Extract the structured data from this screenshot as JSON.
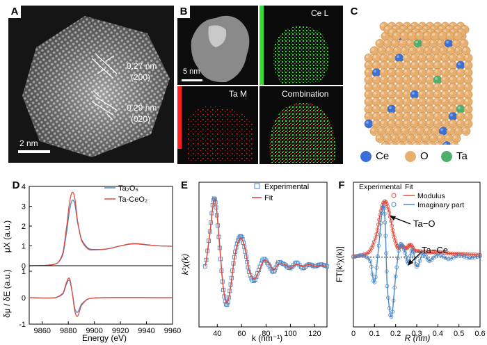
{
  "panels": {
    "A": {
      "label": "A",
      "d1_value": "0.27 nm",
      "d1_plane": "(200)",
      "d2_value": "0.29 nm",
      "d2_plane": "(020)",
      "scale": "2 nm"
    },
    "B": {
      "label": "B",
      "scale": "5 nm",
      "map_ce": "Ce L",
      "map_ta": "Ta M",
      "map_comb": "Combination",
      "colors": {
        "ce": "#33dd33",
        "ta": "#ff2020"
      }
    },
    "C": {
      "label": "C",
      "legend": [
        {
          "name": "Ce",
          "color": "#3a6fd8"
        },
        {
          "name": "O",
          "color": "#e8b070"
        },
        {
          "name": "Ta",
          "color": "#4fb06e"
        }
      ]
    },
    "D": {
      "label": "D",
      "top_ylabel": "μX (a.u.)",
      "bottom_ylabel": "δμ / δE (a.u.)",
      "xlabel": "Energy (eV)",
      "legend": [
        "Ta₂O₅",
        "Ta-CeO₂"
      ],
      "colors": {
        "ta2o5": "#4a86c8",
        "taceo2": "#e04a3a"
      }
    },
    "E": {
      "label": "E",
      "xlabel": "k (nm⁻¹)",
      "ylabel": "k¹χ(k)",
      "legend": [
        "Experimental",
        "Fit"
      ]
    },
    "F": {
      "label": "F",
      "xlabel": "R (nm)",
      "ylabel": "FT[k¹χ(k)]",
      "legend_header": [
        "Experimental",
        "Fit"
      ],
      "legend": [
        "Modulus",
        "Imaginary part"
      ],
      "annotation1": "Ta−O",
      "annotation2": "Ta−Ce"
    }
  },
  "chart_data": [
    {
      "type": "line",
      "title": "",
      "xlabel": "Energy (eV)",
      "ylabel": "μX (a.u.)",
      "xlim": [
        9850,
        9960
      ],
      "ylim": [
        0,
        4
      ],
      "xticks": [
        9860,
        9880,
        9900,
        9920,
        9940,
        9960
      ],
      "yticks": [
        0,
        1,
        2,
        3,
        4
      ],
      "series": [
        {
          "name": "Ta₂O₅",
          "color": "#4a86c8",
          "x": [
            9850,
            9865,
            9872,
            9876,
            9879,
            9881,
            9883,
            9885,
            9887,
            9890,
            9895,
            9900,
            9910,
            9920,
            9930,
            9940,
            9950,
            9960
          ],
          "y": [
            0.0,
            0.03,
            0.15,
            0.6,
            1.8,
            2.8,
            3.3,
            3.1,
            2.2,
            1.35,
            0.9,
            0.82,
            0.85,
            1.0,
            1.1,
            1.05,
            1.0,
            0.98
          ]
        },
        {
          "name": "Ta-CeO₂",
          "color": "#e04a3a",
          "x": [
            9850,
            9865,
            9872,
            9876,
            9879,
            9881,
            9883,
            9885,
            9887,
            9890,
            9895,
            9900,
            9910,
            9920,
            9930,
            9940,
            9950,
            9960
          ],
          "y": [
            0.0,
            0.03,
            0.15,
            0.7,
            2.1,
            3.2,
            3.7,
            3.4,
            2.3,
            1.3,
            0.85,
            0.8,
            0.85,
            1.0,
            1.12,
            1.06,
            1.0,
            0.98
          ]
        }
      ]
    },
    {
      "type": "line",
      "title": "",
      "xlabel": "Energy (eV)",
      "ylabel": "δμ / δE (a.u.)",
      "xlim": [
        9850,
        9960
      ],
      "ylim": [
        -1,
        1
      ],
      "yticks": [
        -1,
        0,
        1
      ],
      "series": [
        {
          "name": "Ta₂O₅",
          "color": "#4a86c8",
          "x": [
            9850,
            9870,
            9876,
            9879,
            9881,
            9883,
            9885,
            9887,
            9890,
            9895,
            9905,
            9960
          ],
          "y": [
            0,
            0,
            0.15,
            0.55,
            0.65,
            0.2,
            -0.4,
            -0.55,
            -0.25,
            -0.05,
            0,
            0
          ]
        },
        {
          "name": "Ta-CeO₂",
          "color": "#e04a3a",
          "x": [
            9850,
            9870,
            9876,
            9879,
            9881,
            9883,
            9885,
            9887,
            9890,
            9895,
            9905,
            9960
          ],
          "y": [
            0,
            0,
            0.18,
            0.62,
            0.72,
            0.2,
            -0.5,
            -0.7,
            -0.3,
            -0.05,
            0,
            0
          ]
        }
      ]
    },
    {
      "type": "scatter",
      "title": "",
      "xlabel": "k (nm⁻¹)",
      "ylabel": "k¹χ(k)",
      "xlim": [
        25,
        130
      ],
      "xticks": [
        40,
        60,
        80,
        100,
        120
      ],
      "series": [
        {
          "name": "Experimental",
          "type": "scatter",
          "color": "#4a86c8",
          "x": [
            30,
            34,
            37,
            39,
            42,
            45,
            48,
            51,
            54,
            57,
            60,
            63,
            66,
            70,
            74,
            78,
            82,
            86,
            90,
            95,
            100,
            105,
            110,
            115,
            120,
            125,
            130
          ],
          "y": [
            0.0,
            1.9,
            3.6,
            3.2,
            1.0,
            -1.3,
            -2.1,
            -1.0,
            0.5,
            1.4,
            1.6,
            0.8,
            -0.3,
            -0.8,
            -0.2,
            0.4,
            0.1,
            -0.3,
            0.2,
            0.1,
            -0.1,
            0.2,
            -0.1,
            0.1,
            0.0,
            0.1,
            0.0
          ]
        },
        {
          "name": "Fit",
          "type": "line",
          "color": "#e04a3a",
          "x": [
            30,
            34,
            37,
            39,
            42,
            45,
            48,
            51,
            54,
            57,
            60,
            63,
            66,
            70,
            74,
            78,
            82,
            86,
            90,
            95,
            100,
            105,
            110,
            115,
            120,
            125,
            130
          ],
          "y": [
            0.0,
            1.8,
            3.5,
            3.3,
            1.1,
            -1.2,
            -2.0,
            -1.1,
            0.4,
            1.3,
            1.5,
            0.9,
            -0.2,
            -0.7,
            -0.3,
            0.3,
            0.2,
            -0.2,
            0.1,
            0.1,
            -0.1,
            0.1,
            0.0,
            0.1,
            0.0,
            0.05,
            0.0
          ]
        }
      ]
    },
    {
      "type": "line",
      "title": "",
      "xlabel": "R (nm)",
      "ylabel": "FT[k¹χ(k)]",
      "xlim": [
        0,
        0.6
      ],
      "xticks": [
        0,
        0.1,
        0.2,
        0.3,
        0.4,
        0.5,
        0.6
      ],
      "series": [
        {
          "name": "Modulus",
          "color": "#e04a3a",
          "x": [
            0,
            0.04,
            0.08,
            0.11,
            0.13,
            0.15,
            0.17,
            0.19,
            0.21,
            0.23,
            0.25,
            0.27,
            0.29,
            0.32,
            0.36,
            0.4,
            0.45,
            0.5,
            0.55,
            0.6
          ],
          "y": [
            0.05,
            0.1,
            0.35,
            1.2,
            2.4,
            2.9,
            2.3,
            1.2,
            0.5,
            0.6,
            0.45,
            0.65,
            0.35,
            0.3,
            0.25,
            0.28,
            0.2,
            0.18,
            0.15,
            0.12
          ]
        },
        {
          "name": "Imaginary part",
          "color": "#4a86c8",
          "x": [
            0,
            0.04,
            0.08,
            0.1,
            0.12,
            0.14,
            0.15,
            0.16,
            0.18,
            0.2,
            0.22,
            0.24,
            0.26,
            0.28,
            0.3,
            0.33,
            0.36,
            0.4,
            0.45,
            0.5,
            0.55,
            0.6
          ],
          "y": [
            0,
            0.1,
            -0.2,
            -1.3,
            0.6,
            2.6,
            1.8,
            -1.5,
            -3.1,
            -1.0,
            0.6,
            0.4,
            -0.3,
            0.4,
            -0.5,
            0.2,
            -0.2,
            0.15,
            -0.1,
            0.1,
            -0.05,
            0.05
          ]
        }
      ]
    }
  ]
}
